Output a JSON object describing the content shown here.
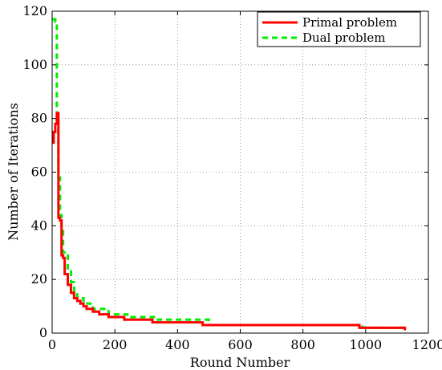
{
  "chart_data": {
    "type": "line",
    "xlabel": "Round Number",
    "ylabel": "Number of Iterations",
    "xlim": [
      0,
      1200
    ],
    "ylim": [
      0,
      120
    ],
    "x_ticks": [
      0,
      200,
      400,
      600,
      800,
      1000,
      1200
    ],
    "y_ticks": [
      0,
      20,
      40,
      60,
      80,
      100,
      120
    ],
    "grid": true,
    "legend_position": "top-right",
    "series": [
      {
        "name": "Primal problem",
        "color": "#ff0000",
        "style": "solid",
        "x": [
          1,
          5,
          10,
          15,
          20,
          25,
          30,
          35,
          40,
          50,
          60,
          70,
          80,
          90,
          100,
          110,
          130,
          150,
          180,
          230,
          320,
          480,
          980,
          1125
        ],
        "y": [
          71,
          75,
          78,
          82,
          43,
          42,
          29,
          28,
          22,
          18,
          15,
          13,
          12,
          11,
          10,
          9,
          8,
          7,
          6,
          5,
          4,
          3,
          2,
          1
        ]
      },
      {
        "name": "Dual problem",
        "color": "#00ee00",
        "style": "dashed",
        "x": [
          1,
          10,
          15,
          20,
          25,
          30,
          35,
          40,
          50,
          60,
          70,
          80,
          100,
          130,
          180,
          240,
          330,
          500,
          990,
          1125
        ],
        "y": [
          117,
          116,
          80,
          58,
          44,
          38,
          30,
          29,
          23,
          19,
          15,
          13,
          11,
          9,
          7,
          6,
          5,
          3,
          2,
          2
        ]
      }
    ]
  }
}
